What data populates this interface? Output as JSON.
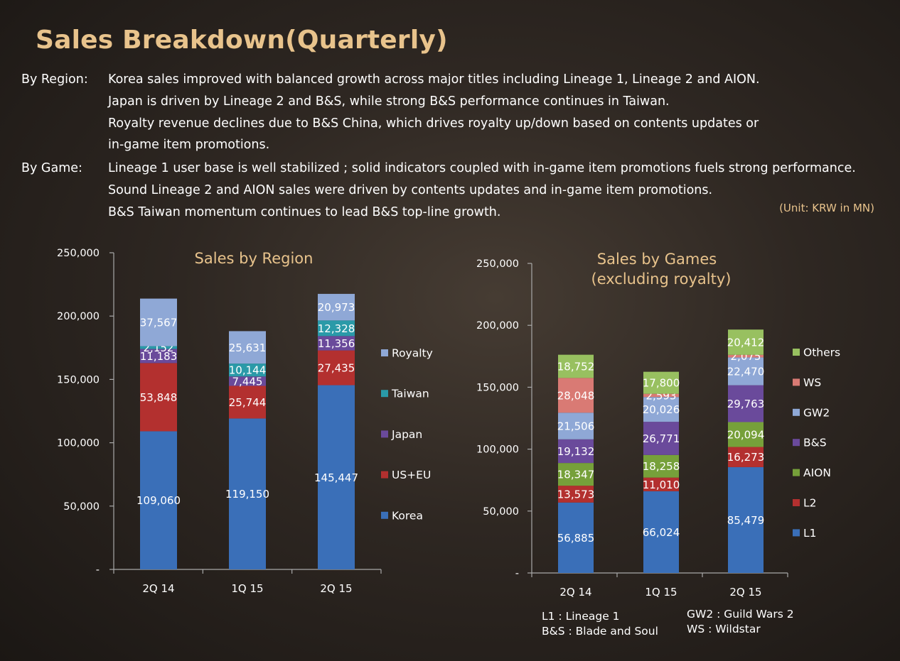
{
  "page": {
    "title": "Sales Breakdown(Quarterly)",
    "unit_note": "(Unit: KRW in MN)"
  },
  "commentary": {
    "by_region": {
      "label": "By Region:",
      "lines": [
        "Korea sales improved with balanced growth across major titles including Lineage 1, Lineage 2 and AION.",
        "Japan is driven by Lineage 2 and B&S, while strong B&S performance continues in Taiwan.",
        "Royalty revenue declines due to B&S China, which drives royalty up/down based on contents updates or",
        "in-game item promotions."
      ]
    },
    "by_game": {
      "label": "By Game:",
      "lines": [
        "Lineage 1 user base is well stabilized ; solid indicators coupled with in-game item promotions fuels strong performance.",
        "Sound Lineage 2 and AION sales were driven by contents updates and in-game item promotions.",
        "B&S Taiwan momentum continues to lead B&S top-line growth."
      ]
    }
  },
  "chart_data": [
    {
      "type": "bar",
      "stacked": true,
      "title": "Sales by Region",
      "categories": [
        "2Q 14",
        "1Q 15",
        "2Q 15"
      ],
      "ylim": [
        0,
        250000
      ],
      "yticks": [
        0,
        50000,
        100000,
        150000,
        200000,
        250000
      ],
      "ytick_labels": [
        "-",
        "50,000",
        "100,000",
        "150,000",
        "200,000",
        "250,000"
      ],
      "legend_position": "right",
      "series": [
        {
          "name": "Korea",
          "color": "#3a6fb8",
          "values": [
            109060,
            119150,
            145447
          ],
          "labels": [
            "109,060",
            "119,150",
            "145,447"
          ]
        },
        {
          "name": "US+EU",
          "color": "#b3302f",
          "values": [
            53848,
            25744,
            27435
          ],
          "labels": [
            "53,848",
            "25,744",
            "27,435"
          ]
        },
        {
          "name": "Japan",
          "color": "#6a4a9b",
          "values": [
            11183,
            7445,
            11356
          ],
          "labels": [
            "11,183",
            "7,445",
            "11,356"
          ]
        },
        {
          "name": "Taiwan",
          "color": "#2a9aa8",
          "values": [
            2152,
            10144,
            12328
          ],
          "labels": [
            "2,152",
            "10,144",
            "12,328"
          ]
        },
        {
          "name": "Royalty",
          "color": "#8fa8d6",
          "values": [
            37567,
            25631,
            20973
          ],
          "labels": [
            "37,567",
            "25,631",
            "20,973"
          ]
        }
      ]
    },
    {
      "type": "bar",
      "stacked": true,
      "title": "Sales by Games",
      "subtitle": "(excluding royalty)",
      "categories": [
        "2Q 14",
        "1Q 15",
        "2Q 15"
      ],
      "ylim": [
        0,
        250000
      ],
      "yticks": [
        0,
        50000,
        100000,
        150000,
        200000,
        250000
      ],
      "ytick_labels": [
        "-",
        "50,000",
        "100,000",
        "150,000",
        "200,000",
        "250,000"
      ],
      "legend_position": "right",
      "series": [
        {
          "name": "L1",
          "color": "#3a6fb8",
          "values": [
            56885,
            66024,
            85479
          ],
          "labels": [
            "56,885",
            "66,024",
            "85,479"
          ]
        },
        {
          "name": "L2",
          "color": "#b3302f",
          "values": [
            13573,
            11010,
            16273
          ],
          "labels": [
            "13,573",
            "11,010",
            "16,273"
          ]
        },
        {
          "name": "AION",
          "color": "#76a03a",
          "values": [
            18347,
            18258,
            20094
          ],
          "labels": [
            "18,347",
            "18,258",
            "20,094"
          ]
        },
        {
          "name": "B&S",
          "color": "#6a4a9b",
          "values": [
            19132,
            26771,
            29763
          ],
          "labels": [
            "19,132",
            "26,771",
            "29,763"
          ]
        },
        {
          "name": "GW2",
          "color": "#8fa8d6",
          "values": [
            21506,
            20026,
            22470
          ],
          "labels": [
            "21,506",
            "20,026",
            "22,470"
          ]
        },
        {
          "name": "WS",
          "color": "#d97a74",
          "values": [
            28048,
            2593,
            2075
          ],
          "labels": [
            "28,048",
            "2,593",
            "2,075"
          ]
        },
        {
          "name": "Others",
          "color": "#98c060",
          "values": [
            18752,
            17800,
            20412
          ],
          "labels": [
            "18,752",
            "17,800",
            "20,412"
          ]
        }
      ],
      "footnotes": {
        "left": [
          "L1 : Lineage 1",
          "B&S : Blade and Soul"
        ],
        "right": [
          "GW2 : Guild Wars 2",
          "WS : Wildstar"
        ]
      }
    }
  ]
}
